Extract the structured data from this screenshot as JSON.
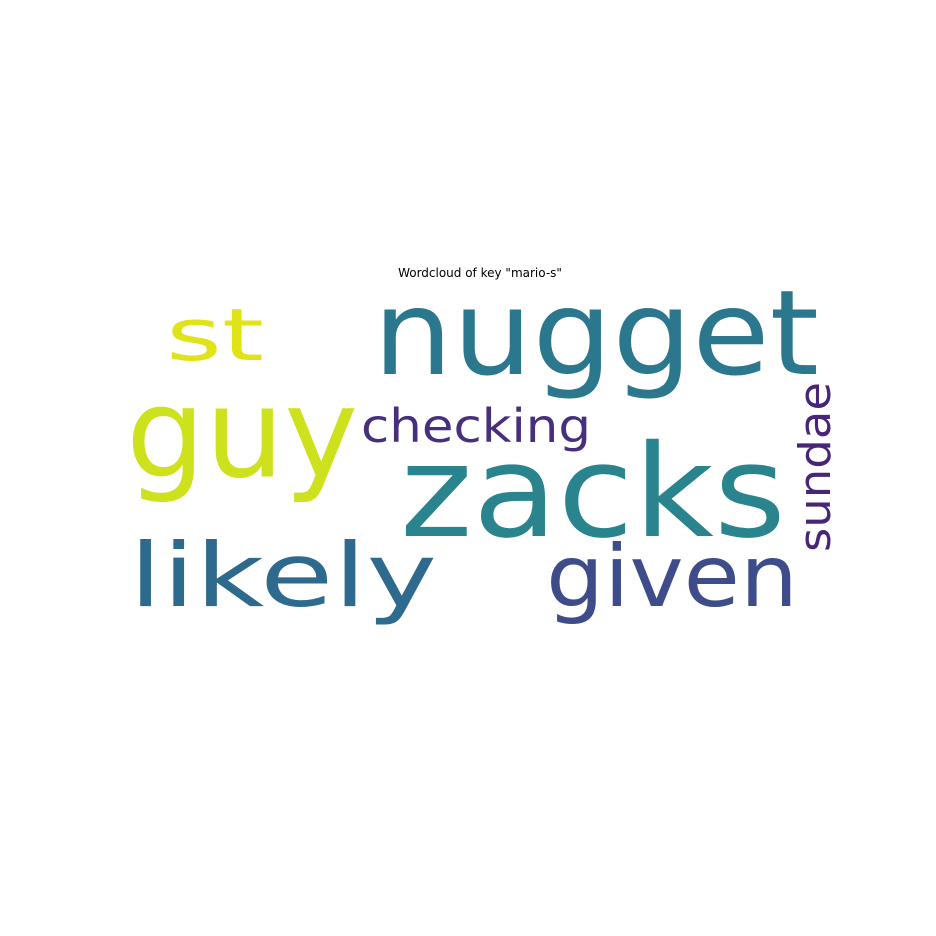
{
  "chart_data": {
    "type": "wordcloud",
    "title": "Wordcloud of key \"mario-s\"",
    "words": [
      {
        "text": "zacks",
        "color": "#2a848e"
      },
      {
        "text": "nugget",
        "color": "#2b788e"
      },
      {
        "text": "guy",
        "color": "#cde11d"
      },
      {
        "text": "likely",
        "color": "#2d6a8e"
      },
      {
        "text": "given",
        "color": "#3e4c8a"
      },
      {
        "text": "st",
        "color": "#dfe318"
      },
      {
        "text": "checking",
        "color": "#472f7d"
      },
      {
        "text": "sundae",
        "color": "#482576",
        "orientation": "vertical"
      }
    ],
    "background": "#ffffff"
  }
}
